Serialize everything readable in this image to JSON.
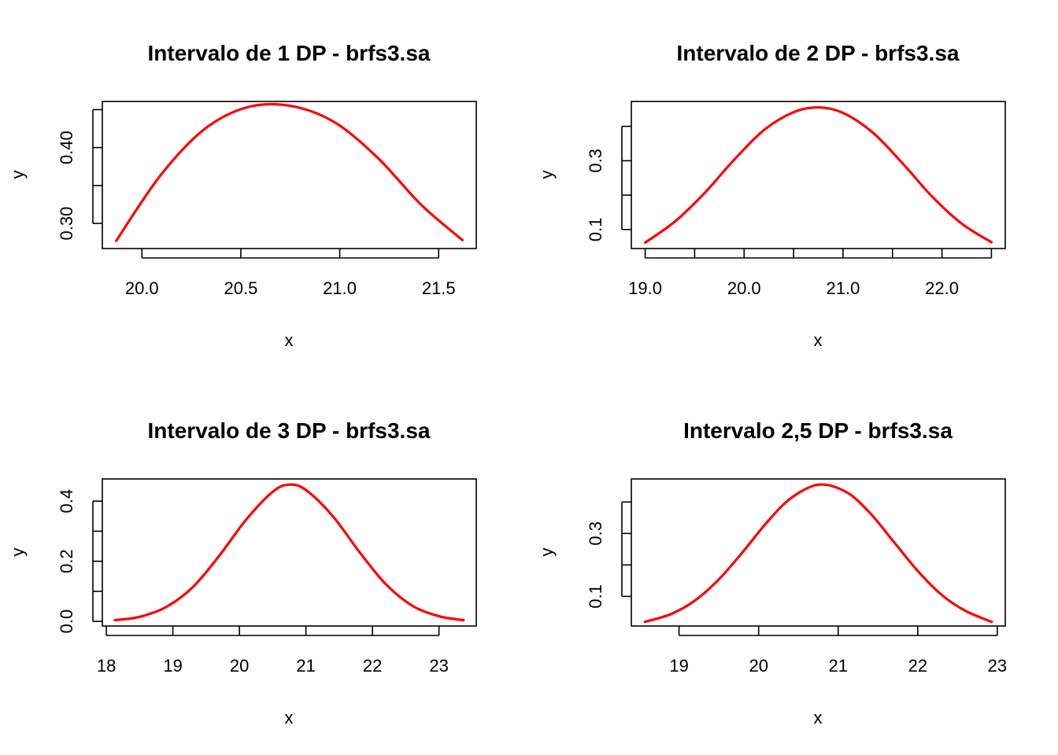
{
  "colors": {
    "curve": "#ff0000",
    "axis": "#000000",
    "background": "#ffffff"
  },
  "chart_data": [
    {
      "type": "line",
      "title": "Intervalo de 1 DP - brfs3.sa",
      "xlabel": "x",
      "ylabel": "y",
      "xlim": [
        19.8,
        21.69
      ],
      "ylim": [
        0.2669,
        0.4608
      ],
      "xticks": [
        20.0,
        20.5,
        21.0,
        21.5
      ],
      "xtick_labels": [
        "20.0",
        "20.5",
        "21.0",
        "21.5"
      ],
      "yticks": [
        0.3,
        0.35,
        0.4,
        0.45
      ],
      "ytick_labels": [
        "0.30",
        "",
        "0.40",
        ""
      ],
      "x_axis_span": [
        20.0,
        21.5
      ],
      "y_axis_span": [
        0.3,
        0.45
      ],
      "x": [
        19.87,
        20.09,
        20.31,
        20.53,
        20.75,
        20.97,
        21.19,
        21.41,
        21.62
      ],
      "y": [
        0.277,
        0.362,
        0.423,
        0.453,
        0.455,
        0.434,
        0.387,
        0.325,
        0.278
      ],
      "grid": false,
      "legend": "none"
    },
    {
      "type": "line",
      "title": "Intervalo de 2 DP - brfs3.sa",
      "xlabel": "x",
      "ylabel": "y",
      "xlim": [
        18.86,
        22.64
      ],
      "ylim": [
        0.0448,
        0.4723
      ],
      "xticks": [
        19.0,
        19.5,
        20.0,
        20.5,
        21.0,
        21.5,
        22.0,
        22.5
      ],
      "xtick_labels": [
        "19.0",
        "",
        "20.0",
        "",
        "21.0",
        "",
        "22.0",
        ""
      ],
      "yticks": [
        0.1,
        0.2,
        0.3,
        0.4
      ],
      "ytick_labels": [
        "0.1",
        "",
        "0.3",
        ""
      ],
      "x_axis_span": [
        19.0,
        22.5
      ],
      "y_axis_span": [
        0.1,
        0.4
      ],
      "x": [
        19.0,
        19.3,
        19.6,
        19.9,
        20.2,
        20.5,
        20.75,
        21.0,
        21.3,
        21.6,
        21.9,
        22.2,
        22.5
      ],
      "y": [
        0.062,
        0.123,
        0.206,
        0.303,
        0.389,
        0.441,
        0.455,
        0.439,
        0.382,
        0.293,
        0.196,
        0.117,
        0.063
      ],
      "grid": false,
      "legend": "none"
    },
    {
      "type": "line",
      "title": "Intervalo de 3 DP - brfs3.sa",
      "xlabel": "x",
      "ylabel": "y",
      "xlim": [
        17.94,
        23.56
      ],
      "ylim": [
        -0.0155,
        0.4738
      ],
      "xticks": [
        18,
        19,
        20,
        21,
        22,
        23
      ],
      "xtick_labels": [
        "18",
        "19",
        "20",
        "21",
        "22",
        "23"
      ],
      "yticks": [
        0.0,
        0.1,
        0.2,
        0.3,
        0.4
      ],
      "ytick_labels": [
        "0.0",
        "",
        "0.2",
        "",
        "0.4"
      ],
      "x_axis_span": [
        18,
        23
      ],
      "y_axis_span": [
        0.0,
        0.4
      ],
      "x": [
        18.13,
        18.5,
        18.9,
        19.3,
        19.7,
        20.1,
        20.5,
        20.75,
        21.0,
        21.4,
        21.8,
        22.2,
        22.6,
        23.0,
        23.37
      ],
      "y": [
        0.004,
        0.015,
        0.048,
        0.114,
        0.219,
        0.338,
        0.431,
        0.455,
        0.437,
        0.351,
        0.232,
        0.124,
        0.052,
        0.017,
        0.004
      ],
      "grid": false,
      "legend": "none"
    },
    {
      "type": "line",
      "title": "Intervalo 2,5 DP - brfs3.sa",
      "xlabel": "x",
      "ylabel": "y",
      "xlim": [
        18.4,
        23.1
      ],
      "ylim": [
        0.0058,
        0.4733
      ],
      "xticks": [
        19,
        20,
        21,
        22,
        23
      ],
      "xtick_labels": [
        "19",
        "20",
        "21",
        "22",
        "23"
      ],
      "yticks": [
        0.1,
        0.2,
        0.3,
        0.4
      ],
      "ytick_labels": [
        "0.1",
        "",
        "0.3",
        ""
      ],
      "x_axis_span": [
        19,
        23
      ],
      "y_axis_span": [
        0.1,
        0.4
      ],
      "x": [
        18.57,
        18.9,
        19.2,
        19.5,
        19.8,
        20.1,
        20.4,
        20.75,
        21.1,
        21.4,
        21.7,
        22.0,
        22.3,
        22.6,
        22.93
      ],
      "y": [
        0.019,
        0.044,
        0.087,
        0.154,
        0.241,
        0.334,
        0.411,
        0.455,
        0.432,
        0.365,
        0.273,
        0.181,
        0.105,
        0.054,
        0.019
      ],
      "grid": false,
      "legend": "none"
    }
  ]
}
